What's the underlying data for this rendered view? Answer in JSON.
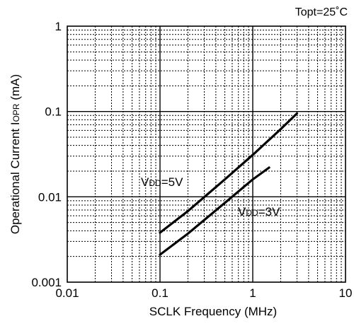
{
  "chart_data": {
    "type": "line",
    "title": "Topt=25˚C",
    "xlabel": "SCLK Frequency (MHz)",
    "ylabel": {
      "prefix": "Operational Current  I",
      "subscript": "OPR",
      "suffix": " (mA)"
    },
    "x_scale": "log",
    "y_scale": "log",
    "xlim": [
      0.01,
      10
    ],
    "ylim": [
      0.001,
      1
    ],
    "grid": true,
    "x_ticks": [
      {
        "value": 0.01,
        "label": "0.01"
      },
      {
        "value": 0.1,
        "label": "0.1"
      },
      {
        "value": 1,
        "label": "1"
      },
      {
        "value": 10,
        "label": "10"
      }
    ],
    "y_ticks": [
      {
        "value": 0.001,
        "label": "0.001"
      },
      {
        "value": 0.01,
        "label": "0.01"
      },
      {
        "value": 0.1,
        "label": "0.1"
      },
      {
        "value": 1,
        "label": "1"
      }
    ],
    "series": [
      {
        "name": {
          "main": "V",
          "sub": "DD",
          "rest": "=5V"
        },
        "x": [
          0.1,
          0.2,
          0.5,
          1.0,
          2.0,
          3.0
        ],
        "y": [
          0.0038,
          0.0068,
          0.016,
          0.031,
          0.062,
          0.095
        ]
      },
      {
        "name": {
          "main": "V",
          "sub": "DD",
          "rest": "=3V"
        },
        "x": [
          0.1,
          0.2,
          0.5,
          1.0,
          1.5
        ],
        "y": [
          0.0021,
          0.0037,
          0.0085,
          0.016,
          0.022
        ]
      }
    ]
  }
}
